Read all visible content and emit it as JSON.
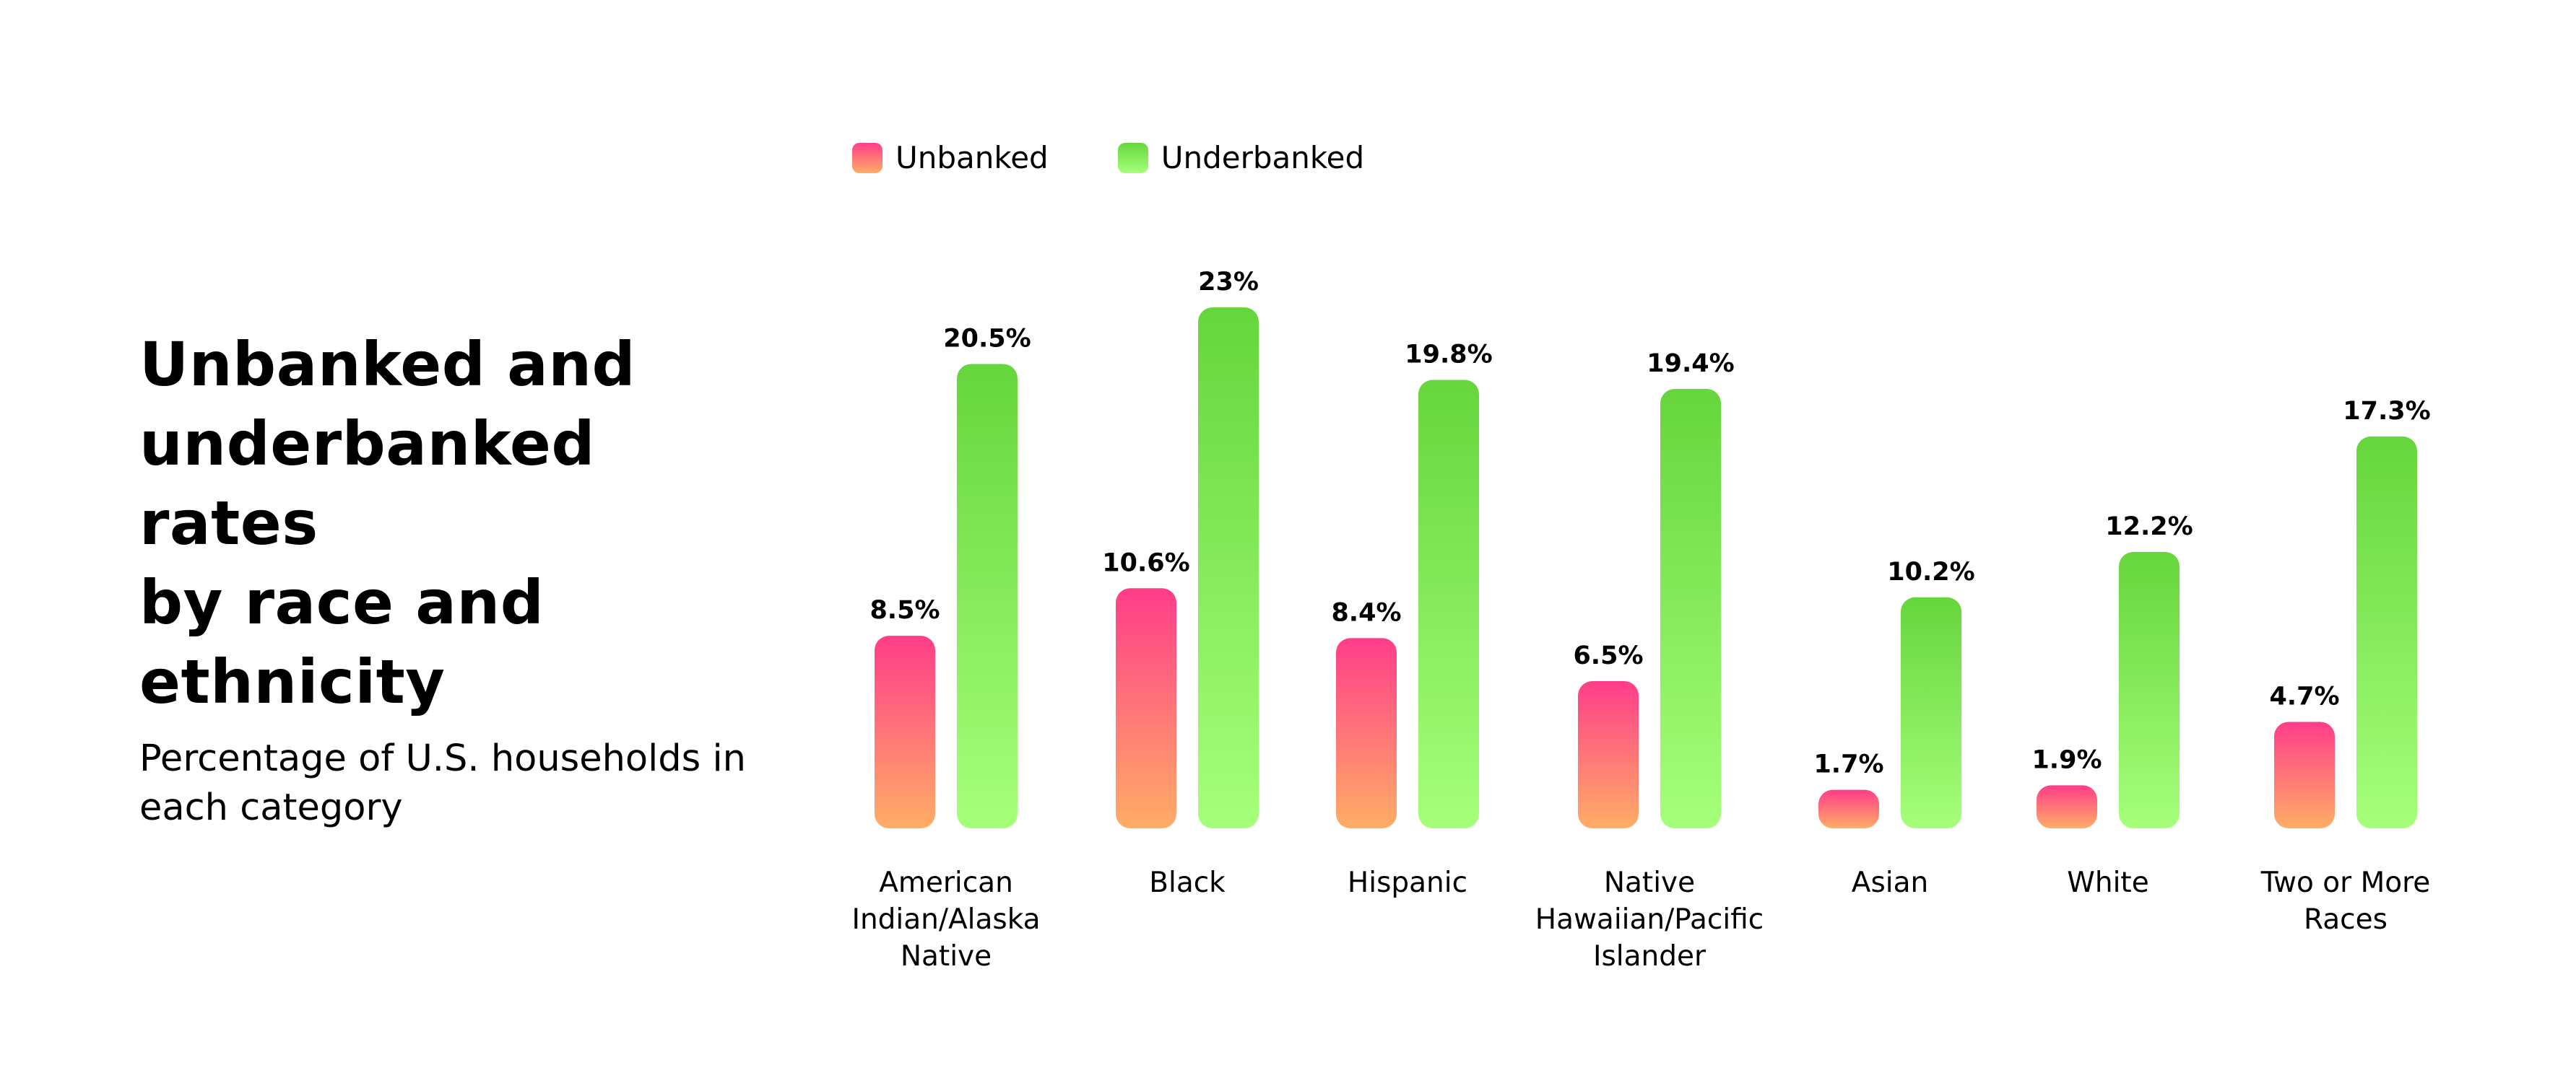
{
  "chart_data": {
    "type": "bar",
    "title": "Unbanked and\nunderbanked rates\nby race and\nethnicity",
    "subtitle": "Percentage of U.S. households in\neach category",
    "categories": [
      [
        "American",
        "Indian/Alaska",
        "Native"
      ],
      [
        "Black"
      ],
      [
        "Hispanic"
      ],
      [
        "Native",
        "Hawaiian/Pacific",
        "Islander"
      ],
      [
        "Asian"
      ],
      [
        "White"
      ],
      [
        "Two or More",
        "Races"
      ]
    ],
    "series": [
      {
        "name": "Unbanked",
        "values": [
          8.5,
          10.6,
          8.4,
          6.5,
          1.7,
          1.9,
          4.7
        ],
        "labels": [
          "8.5%",
          "10.6%",
          "8.4%",
          "6.5%",
          "1.7%",
          "1.9%",
          "4.7%"
        ],
        "color_top": "#FF3D8A",
        "color_bottom": "#FFAD66"
      },
      {
        "name": "Underbanked",
        "values": [
          20.5,
          23,
          19.8,
          19.4,
          10.2,
          12.2,
          17.3
        ],
        "labels": [
          "20.5%",
          "23%",
          "19.8%",
          "19.4%",
          "10.2%",
          "12.2%",
          "17.3%"
        ],
        "color_top": "#66D63D",
        "color_bottom": "#A6FF7A"
      }
    ],
    "ylim": [
      0,
      23
    ],
    "grid": false,
    "legend_position": "top-left"
  }
}
